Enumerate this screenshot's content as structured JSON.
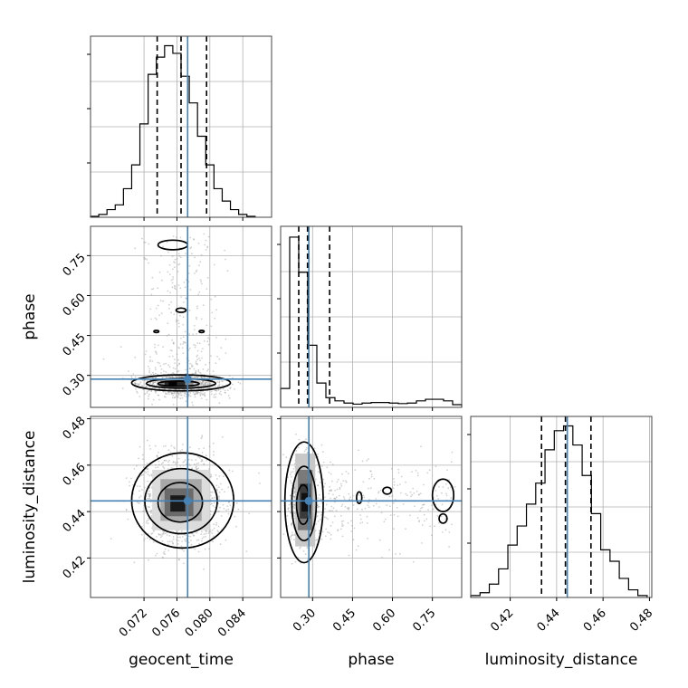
{
  "chart_data": {
    "type": "corner",
    "parameters": [
      "geocent_time",
      "phase",
      "luminosity_distance"
    ],
    "truth": {
      "geocent_time": 0.0773,
      "phase": 0.286,
      "luminosity_distance": 0.4446
    },
    "colors": {
      "truth": "#4682b4",
      "hist": "#000000",
      "grid": "#b0b0b0",
      "points": "#9a9a9a"
    },
    "grid": true,
    "histograms": [
      {
        "param": "geocent_time",
        "xlim": [
          0.0655,
          0.0875
        ],
        "bin_edges": [
          0.0655,
          0.0665,
          0.0675,
          0.0685,
          0.0695,
          0.0705,
          0.0715,
          0.0725,
          0.0735,
          0.0745,
          0.0755,
          0.0765,
          0.0775,
          0.0785,
          0.0795,
          0.0805,
          0.0815,
          0.0825,
          0.0835,
          0.0845,
          0.0855
        ],
        "counts": [
          1,
          3,
          8,
          13,
          30,
          55,
          98,
          150,
          168,
          180,
          172,
          148,
          120,
          85,
          55,
          30,
          17,
          8,
          3,
          1
        ],
        "quantiles": [
          0.0736,
          0.0765,
          0.0796
        ],
        "ymax": 190
      },
      {
        "param": "phase",
        "xlim": [
          0.18,
          0.86
        ],
        "bin_edges": [
          0.18,
          0.214,
          0.248,
          0.282,
          0.316,
          0.35,
          0.384,
          0.418,
          0.452,
          0.486,
          0.52,
          0.554,
          0.588,
          0.622,
          0.656,
          0.69,
          0.724,
          0.758,
          0.792,
          0.826,
          0.86
        ],
        "counts": [
          35,
          315,
          250,
          115,
          45,
          18,
          12,
          8,
          6,
          8,
          9,
          9,
          8,
          7,
          8,
          12,
          15,
          15,
          12,
          5
        ],
        "quantiles": [
          0.248,
          0.281,
          0.364
        ],
        "ymax": 335
      },
      {
        "param": "luminosity_distance",
        "xlim": [
          0.403,
          0.481
        ],
        "bin_edges": [
          0.403,
          0.407,
          0.411,
          0.415,
          0.419,
          0.423,
          0.427,
          0.431,
          0.435,
          0.439,
          0.443,
          0.447,
          0.451,
          0.455,
          0.459,
          0.463,
          0.467,
          0.471,
          0.475,
          0.479
        ],
        "counts": [
          2,
          5,
          14,
          30,
          55,
          75,
          98,
          120,
          155,
          175,
          180,
          160,
          128,
          88,
          50,
          38,
          20,
          8,
          2
        ],
        "quantiles": [
          0.4335,
          0.4438,
          0.4548
        ],
        "ymax": 190
      }
    ],
    "panels_2d": [
      {
        "x": "geocent_time",
        "y": "phase"
      },
      {
        "x": "geocent_time",
        "y": "luminosity_distance"
      },
      {
        "x": "phase",
        "y": "luminosity_distance"
      }
    ],
    "axes": {
      "geocent_time": {
        "range": [
          0.0655,
          0.0875
        ],
        "ticks": [
          0.072,
          0.076,
          0.08,
          0.084
        ],
        "tick_labels": [
          "0.072",
          "0.076",
          "0.080",
          "0.084"
        ]
      },
      "phase": {
        "range": [
          0.18,
          0.86
        ],
        "ticks": [
          0.3,
          0.45,
          0.6,
          0.75
        ],
        "tick_labels": [
          "0.30",
          "0.45",
          "0.60",
          "0.75"
        ]
      },
      "luminosity_distance": {
        "range": [
          0.403,
          0.481
        ],
        "ticks": [
          0.42,
          0.44,
          0.46,
          0.48
        ],
        "tick_labels": [
          "0.42",
          "0.44",
          "0.46",
          "0.48"
        ]
      }
    },
    "xlabels": [
      "geocent_time",
      "phase",
      "luminosity_distance"
    ],
    "ylabels": [
      "phase",
      "luminosity_distance"
    ]
  }
}
